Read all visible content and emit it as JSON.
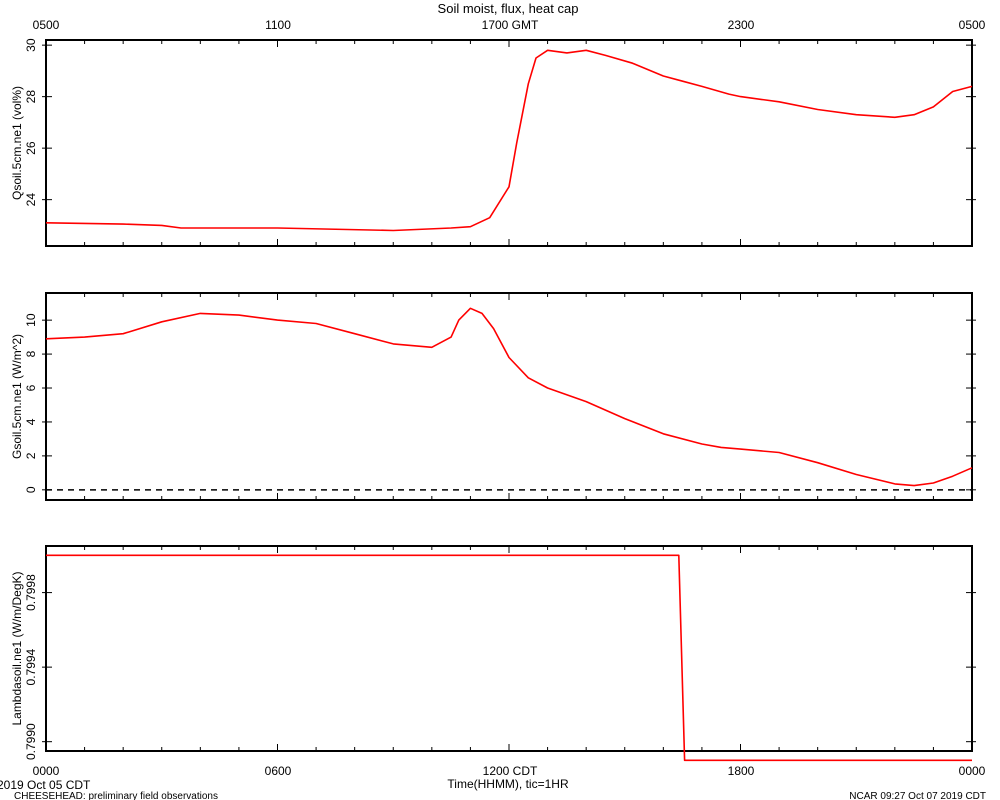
{
  "title": "Soil moist, flux, heat cap",
  "colors": {
    "series": "#ff0000",
    "axis": "#000000",
    "zero_line": "#000000"
  },
  "top_axis": {
    "ticks": [
      "0500",
      "1100",
      "1700 GMT",
      "2300",
      "0500"
    ]
  },
  "bottom_axis": {
    "ticks": [
      "0000",
      "0600",
      "1200 CDT",
      "1800",
      "0000"
    ],
    "label": "Time(HHMM), tic=1HR",
    "start_date": "2019 Oct 05 CDT"
  },
  "footer": {
    "left": "CHEESEHEAD: preliminary field observations",
    "right": "NCAR 09:27 Oct 07 2019 CDT"
  },
  "chart_data": [
    {
      "type": "line",
      "ylabel": "Qsoil.5cm.ne1 (vol%)",
      "ylim": [
        22.2,
        30.2
      ],
      "yticks": [
        24,
        26,
        28,
        30
      ],
      "x_hours": [
        0,
        2,
        3,
        3.5,
        6,
        9,
        10.5,
        11,
        11.5,
        12,
        12.2,
        12.5,
        12.7,
        13,
        13.5,
        14,
        14.5,
        15.2,
        16,
        16.5,
        17,
        17.7,
        18,
        19,
        20,
        21,
        22,
        22.5,
        23,
        23.5,
        24
      ],
      "values": [
        23.1,
        23.05,
        23.0,
        22.9,
        22.9,
        22.8,
        22.9,
        22.95,
        23.3,
        24.5,
        26.2,
        28.5,
        29.5,
        29.8,
        29.7,
        29.8,
        29.6,
        29.3,
        28.8,
        28.6,
        28.4,
        28.1,
        28.0,
        27.8,
        27.5,
        27.3,
        27.2,
        27.3,
        27.6,
        28.2,
        28.4
      ],
      "zero_line": false
    },
    {
      "type": "line",
      "ylabel": "Gsoil.5cm.ne1 (W/m^2)",
      "ylim": [
        -0.6,
        11.6
      ],
      "yticks": [
        0,
        2,
        4,
        6,
        8,
        10
      ],
      "x_hours": [
        0,
        1,
        2,
        3,
        4,
        5,
        6,
        7,
        8,
        9,
        10,
        10.5,
        10.7,
        11,
        11.3,
        11.6,
        12,
        12.5,
        13,
        14,
        15,
        16,
        17,
        17.5,
        18,
        19,
        20,
        21,
        22,
        22.5,
        23,
        23.5,
        24
      ],
      "values": [
        8.9,
        9.0,
        9.2,
        9.9,
        10.4,
        10.3,
        10.0,
        9.8,
        9.2,
        8.6,
        8.4,
        9.0,
        10.0,
        10.7,
        10.4,
        9.5,
        7.8,
        6.6,
        6.0,
        5.2,
        4.2,
        3.3,
        2.7,
        2.5,
        2.4,
        2.2,
        1.6,
        0.9,
        0.35,
        0.25,
        0.4,
        0.8,
        1.3
      ],
      "zero_line": true
    },
    {
      "type": "line",
      "ylabel": "Lambdasoil.ne1 (W/m/DegK)",
      "ylim": [
        0.79895,
        0.80005
      ],
      "yticks": [
        0.799,
        0.7994,
        0.7998
      ],
      "ytick_labels": [
        "0.7990",
        "0.7994",
        "0.7998"
      ],
      "x_hours": [
        0,
        16.4,
        16.55,
        24
      ],
      "values": [
        0.8,
        0.8,
        0.7989,
        0.7989
      ],
      "zero_line": false
    }
  ]
}
